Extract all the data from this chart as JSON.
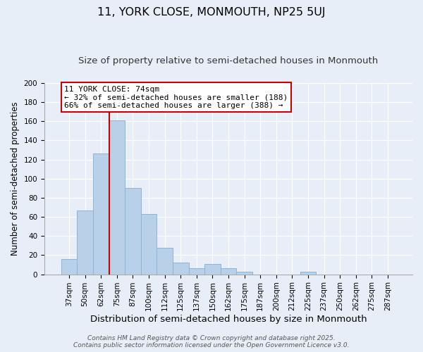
{
  "title": "11, YORK CLOSE, MONMOUTH, NP25 5UJ",
  "subtitle": "Size of property relative to semi-detached houses in Monmouth",
  "xlabel": "Distribution of semi-detached houses by size in Monmouth",
  "ylabel": "Number of semi-detached properties",
  "bar_labels": [
    "37sqm",
    "50sqm",
    "62sqm",
    "75sqm",
    "87sqm",
    "100sqm",
    "112sqm",
    "125sqm",
    "137sqm",
    "150sqm",
    "162sqm",
    "175sqm",
    "187sqm",
    "200sqm",
    "212sqm",
    "225sqm",
    "237sqm",
    "250sqm",
    "262sqm",
    "275sqm",
    "287sqm"
  ],
  "bar_values": [
    16,
    67,
    126,
    161,
    90,
    63,
    28,
    12,
    6,
    11,
    6,
    3,
    0,
    0,
    0,
    3,
    0,
    0,
    0,
    0,
    0
  ],
  "bar_color": "#b8d0e8",
  "bar_edge_color": "#8eb4d4",
  "vline_color": "#cc0000",
  "vline_bar_index": 3,
  "ylim": [
    0,
    200
  ],
  "yticks": [
    0,
    20,
    40,
    60,
    80,
    100,
    120,
    140,
    160,
    180,
    200
  ],
  "annotation_title": "11 YORK CLOSE: 74sqm",
  "annotation_line1": "← 32% of semi-detached houses are smaller (188)",
  "annotation_line2": "66% of semi-detached houses are larger (388) →",
  "annotation_box_color": "#ffffff",
  "annotation_box_edge_color": "#cc0000",
  "footer_line1": "Contains HM Land Registry data © Crown copyright and database right 2025.",
  "footer_line2": "Contains public sector information licensed under the Open Government Licence v3.0.",
  "background_color": "#e8eef8",
  "grid_color": "#ffffff",
  "title_fontsize": 11.5,
  "subtitle_fontsize": 9.5,
  "ylabel_fontsize": 8.5,
  "xlabel_fontsize": 9.5,
  "tick_fontsize": 7.5,
  "footer_fontsize": 6.5,
  "annotation_fontsize": 8
}
